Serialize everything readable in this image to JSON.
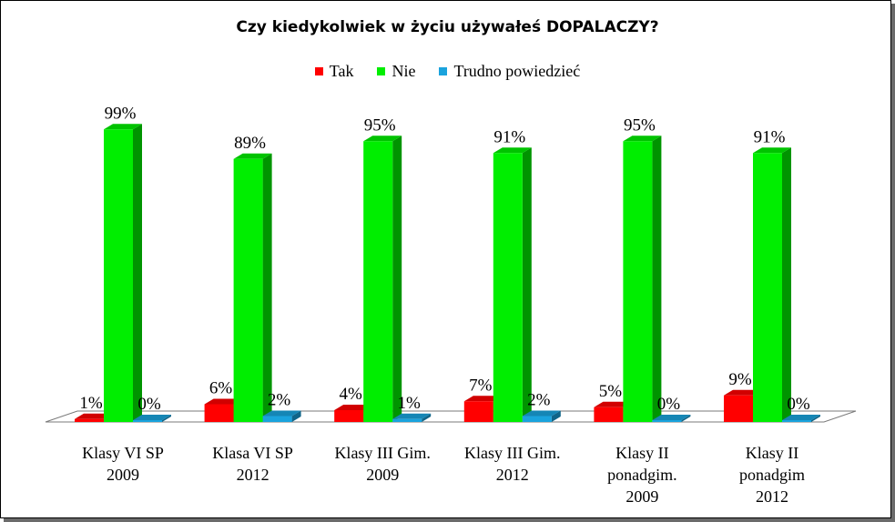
{
  "chart_data": {
    "type": "bar",
    "title": "Czy kiedykolwiek w życiu używałeś DOPALACZY?",
    "legend_position": "top",
    "categories": [
      [
        "Klasy VI SP",
        "2009"
      ],
      [
        "Klasa VI SP",
        "2012"
      ],
      [
        "Klasy III Gim.",
        "2009"
      ],
      [
        "Klasy III Gim.",
        "2012"
      ],
      [
        "Klasy II",
        "ponadgim.",
        "2009"
      ],
      [
        "Klasy II",
        "ponadgim",
        "2012"
      ]
    ],
    "series": [
      {
        "name": "Tak",
        "color": "#ff0000",
        "values": [
          1,
          6,
          4,
          7,
          5,
          9
        ],
        "labels": [
          "1%",
          "6%",
          "4%",
          "7%",
          "5%",
          "9%"
        ]
      },
      {
        "name": "Nie",
        "color": "#00ee00",
        "values": [
          99,
          89,
          95,
          91,
          95,
          91
        ],
        "labels": [
          "99%",
          "89%",
          "95%",
          "91%",
          "95%",
          "91%"
        ]
      },
      {
        "name": "Trudno powiedzieć",
        "color": "#1aa3dd",
        "values": [
          0,
          2,
          1,
          2,
          0,
          0
        ],
        "labels": [
          "0%",
          "2%",
          "1%",
          "2%",
          "0%",
          "0%"
        ]
      }
    ],
    "ylim": [
      0,
      100
    ],
    "grid": false
  }
}
